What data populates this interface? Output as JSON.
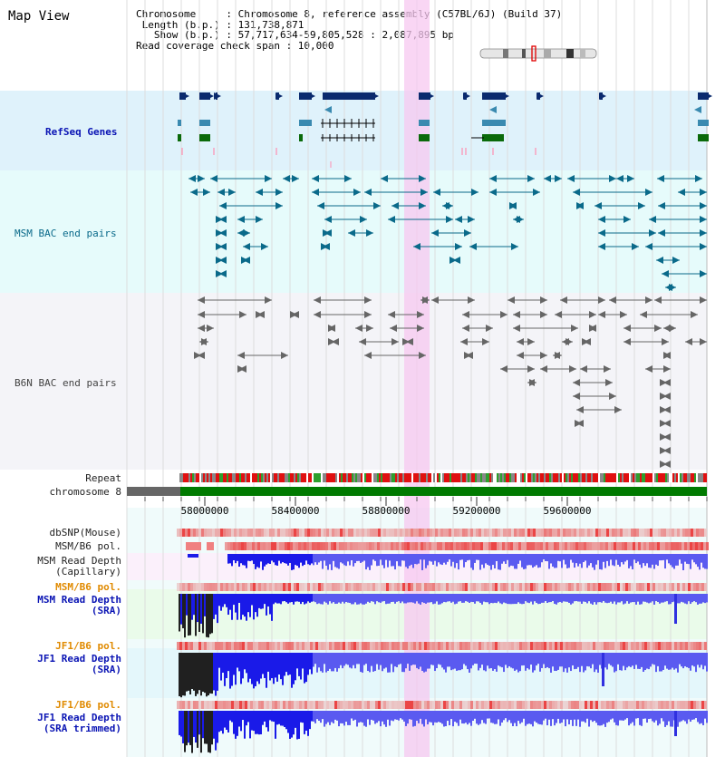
{
  "title": "Map View",
  "header": {
    "chromosome": "Chromosome     : Chromosome 8, reference assembly (C57BL/6J) (Build 37)",
    "length": " Length (b.p.) : 131,738,871",
    "show": "   Show (b.p.) : 57,717,634-59,805,528 : 2,087,895 bp",
    "coverage": "Read coverage check span : 10,000"
  },
  "labels": {
    "refseq": "RefSeq Genes",
    "msm_bac": "MSM BAC end pairs",
    "b6n_bac": "B6N BAC end pairs",
    "repeat": "Repeat",
    "chromosome": "chromosome 8",
    "dbsnp": "dbSNP(Mouse)",
    "msm_b6_pol": "MSM/B6 pol.",
    "msm_depth": "MSM Read Depth",
    "capillary": "(Capillary)",
    "sra": "(SRA)",
    "jf1_b6_pol": "JF1/B6 pol.",
    "jf1_depth": "JF1 Read Depth",
    "sra_trimmed": "(SRA trimmed)"
  },
  "axis": {
    "ticks": [
      "58000000",
      "58400000",
      "58800000",
      "59200000",
      "59600000"
    ]
  },
  "colors": {
    "refseq_dark": "#0a2a6e",
    "refseq_mid": "#3a8ab0",
    "refseq_green": "#0a6a0a",
    "msm_bac": "#0a6a8a",
    "b6n_bac": "#666666",
    "depth_blue": "#2020e0",
    "highlight": "#f7c8f0"
  }
}
